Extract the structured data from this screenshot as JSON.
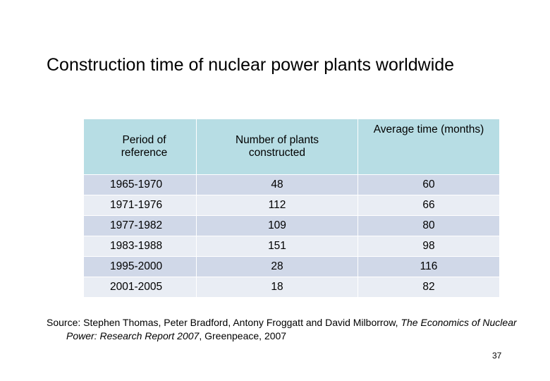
{
  "header": {
    "title": "Construction time of nuclear power plants worldwide"
  },
  "table": {
    "columns": [
      "Period of reference",
      "Number of plants constructed",
      "Average time (months)"
    ],
    "rows": [
      [
        "1965-1970",
        48,
        60
      ],
      [
        "1971-1976",
        112,
        66
      ],
      [
        "1977-1982",
        109,
        80
      ],
      [
        "1983-1988",
        151,
        98
      ],
      [
        "1995-2000",
        28,
        116
      ],
      [
        "2001-2005",
        18,
        82
      ]
    ]
  },
  "source": {
    "prefix": "Source: Stephen Thomas, Peter Bradford, Antony Froggatt and David Milborrow,",
    "title": "The Economics of Nuclear Power: Research Report 2007",
    "suffix": ", Greenpeace, 2007"
  },
  "page_number": 37
}
